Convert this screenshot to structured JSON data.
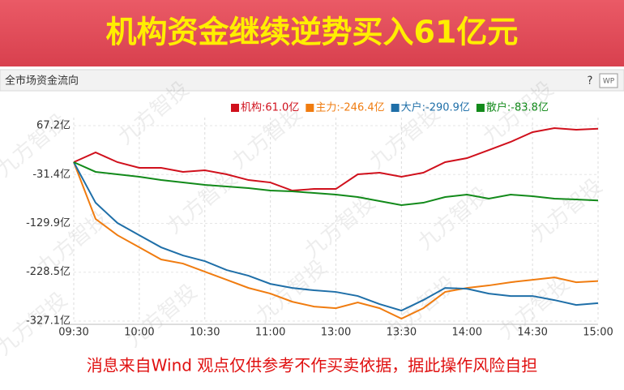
{
  "header": {
    "title": "机构资金继续逆势买入61亿元"
  },
  "panel": {
    "title": "全市场资金流向",
    "help": "?",
    "icon": "WP"
  },
  "watermark": "九方智投",
  "chart_data": {
    "type": "line",
    "grid": true,
    "legend": "top-right",
    "x": [
      0,
      10,
      20,
      30,
      40,
      50,
      60,
      70,
      80,
      90,
      100,
      110,
      120,
      130,
      140,
      150,
      160,
      170,
      180,
      190,
      200,
      210,
      220,
      230,
      240
    ],
    "xlim": [
      0,
      240
    ],
    "xticks": [
      {
        "value": 0,
        "label": "09:30"
      },
      {
        "value": 30,
        "label": "10:00"
      },
      {
        "value": 60,
        "label": "10:30"
      },
      {
        "value": 90,
        "label": "11:00"
      },
      {
        "value": 120,
        "label": "13:00"
      },
      {
        "value": 150,
        "label": "13:30"
      },
      {
        "value": 180,
        "label": "14:00"
      },
      {
        "value": 210,
        "label": "14:30"
      },
      {
        "value": 240,
        "label": "15:00"
      }
    ],
    "ylim": [
      -327.1,
      67.2
    ],
    "yticks": [
      {
        "value": 67.2,
        "label": "67.2亿"
      },
      {
        "value": -31.4,
        "label": "-31.4亿"
      },
      {
        "value": -129.9,
        "label": "-129.9亿"
      },
      {
        "value": -228.5,
        "label": "-228.5亿"
      },
      {
        "value": -327.1,
        "label": "-327.1亿"
      }
    ],
    "series": [
      {
        "name": "机构:61.0亿",
        "color": "#d0101c",
        "values": [
          -6.4,
          13.2,
          -6.4,
          -17.9,
          -17.9,
          -26,
          -22.8,
          -31,
          -42.5,
          -47.4,
          -63.7,
          -60.5,
          -60.5,
          -31,
          -27.7,
          -35.9,
          -27.7,
          -6.4,
          1.7,
          18.1,
          34.5,
          54.1,
          62.3,
          59,
          61.0
        ]
      },
      {
        "name": "主力:-246.4亿",
        "color": "#f07c10",
        "values": [
          -6.4,
          -121,
          -153.8,
          -178.3,
          -202.8,
          -211,
          -227.4,
          -243.8,
          -260.2,
          -271.6,
          -288,
          -297.8,
          -301.1,
          -289.6,
          -301.1,
          -322.3,
          -301.1,
          -268.3,
          -260.2,
          -255.2,
          -248.7,
          -243.8,
          -238.9,
          -248.7,
          -246.4
        ]
      },
      {
        "name": "大户:-290.9亿",
        "color": "#1f6fa8",
        "values": [
          -6.4,
          -88.3,
          -129.2,
          -153.8,
          -178.3,
          -194.7,
          -206.1,
          -224.1,
          -235.6,
          -252,
          -260.2,
          -265,
          -268.3,
          -276.5,
          -292.9,
          -305.9,
          -284.7,
          -260.2,
          -261.8,
          -271.6,
          -276.5,
          -276.5,
          -284.7,
          -294.6,
          -290.9
        ]
      },
      {
        "name": "散户:-83.8亿",
        "color": "#128a1a",
        "values": [
          -6.4,
          -26,
          -31,
          -35.9,
          -42.5,
          -47.4,
          -52.3,
          -55.5,
          -58.8,
          -63.7,
          -65.4,
          -68.6,
          -71.9,
          -76.8,
          -85,
          -93.2,
          -88.3,
          -76.8,
          -71.9,
          -80.1,
          -71.9,
          -75.2,
          -80.1,
          -81.7,
          -83.8
        ]
      }
    ]
  },
  "footer": "消息来自Wind  观点仅供参考不作买卖依据，据此操作风险自担"
}
